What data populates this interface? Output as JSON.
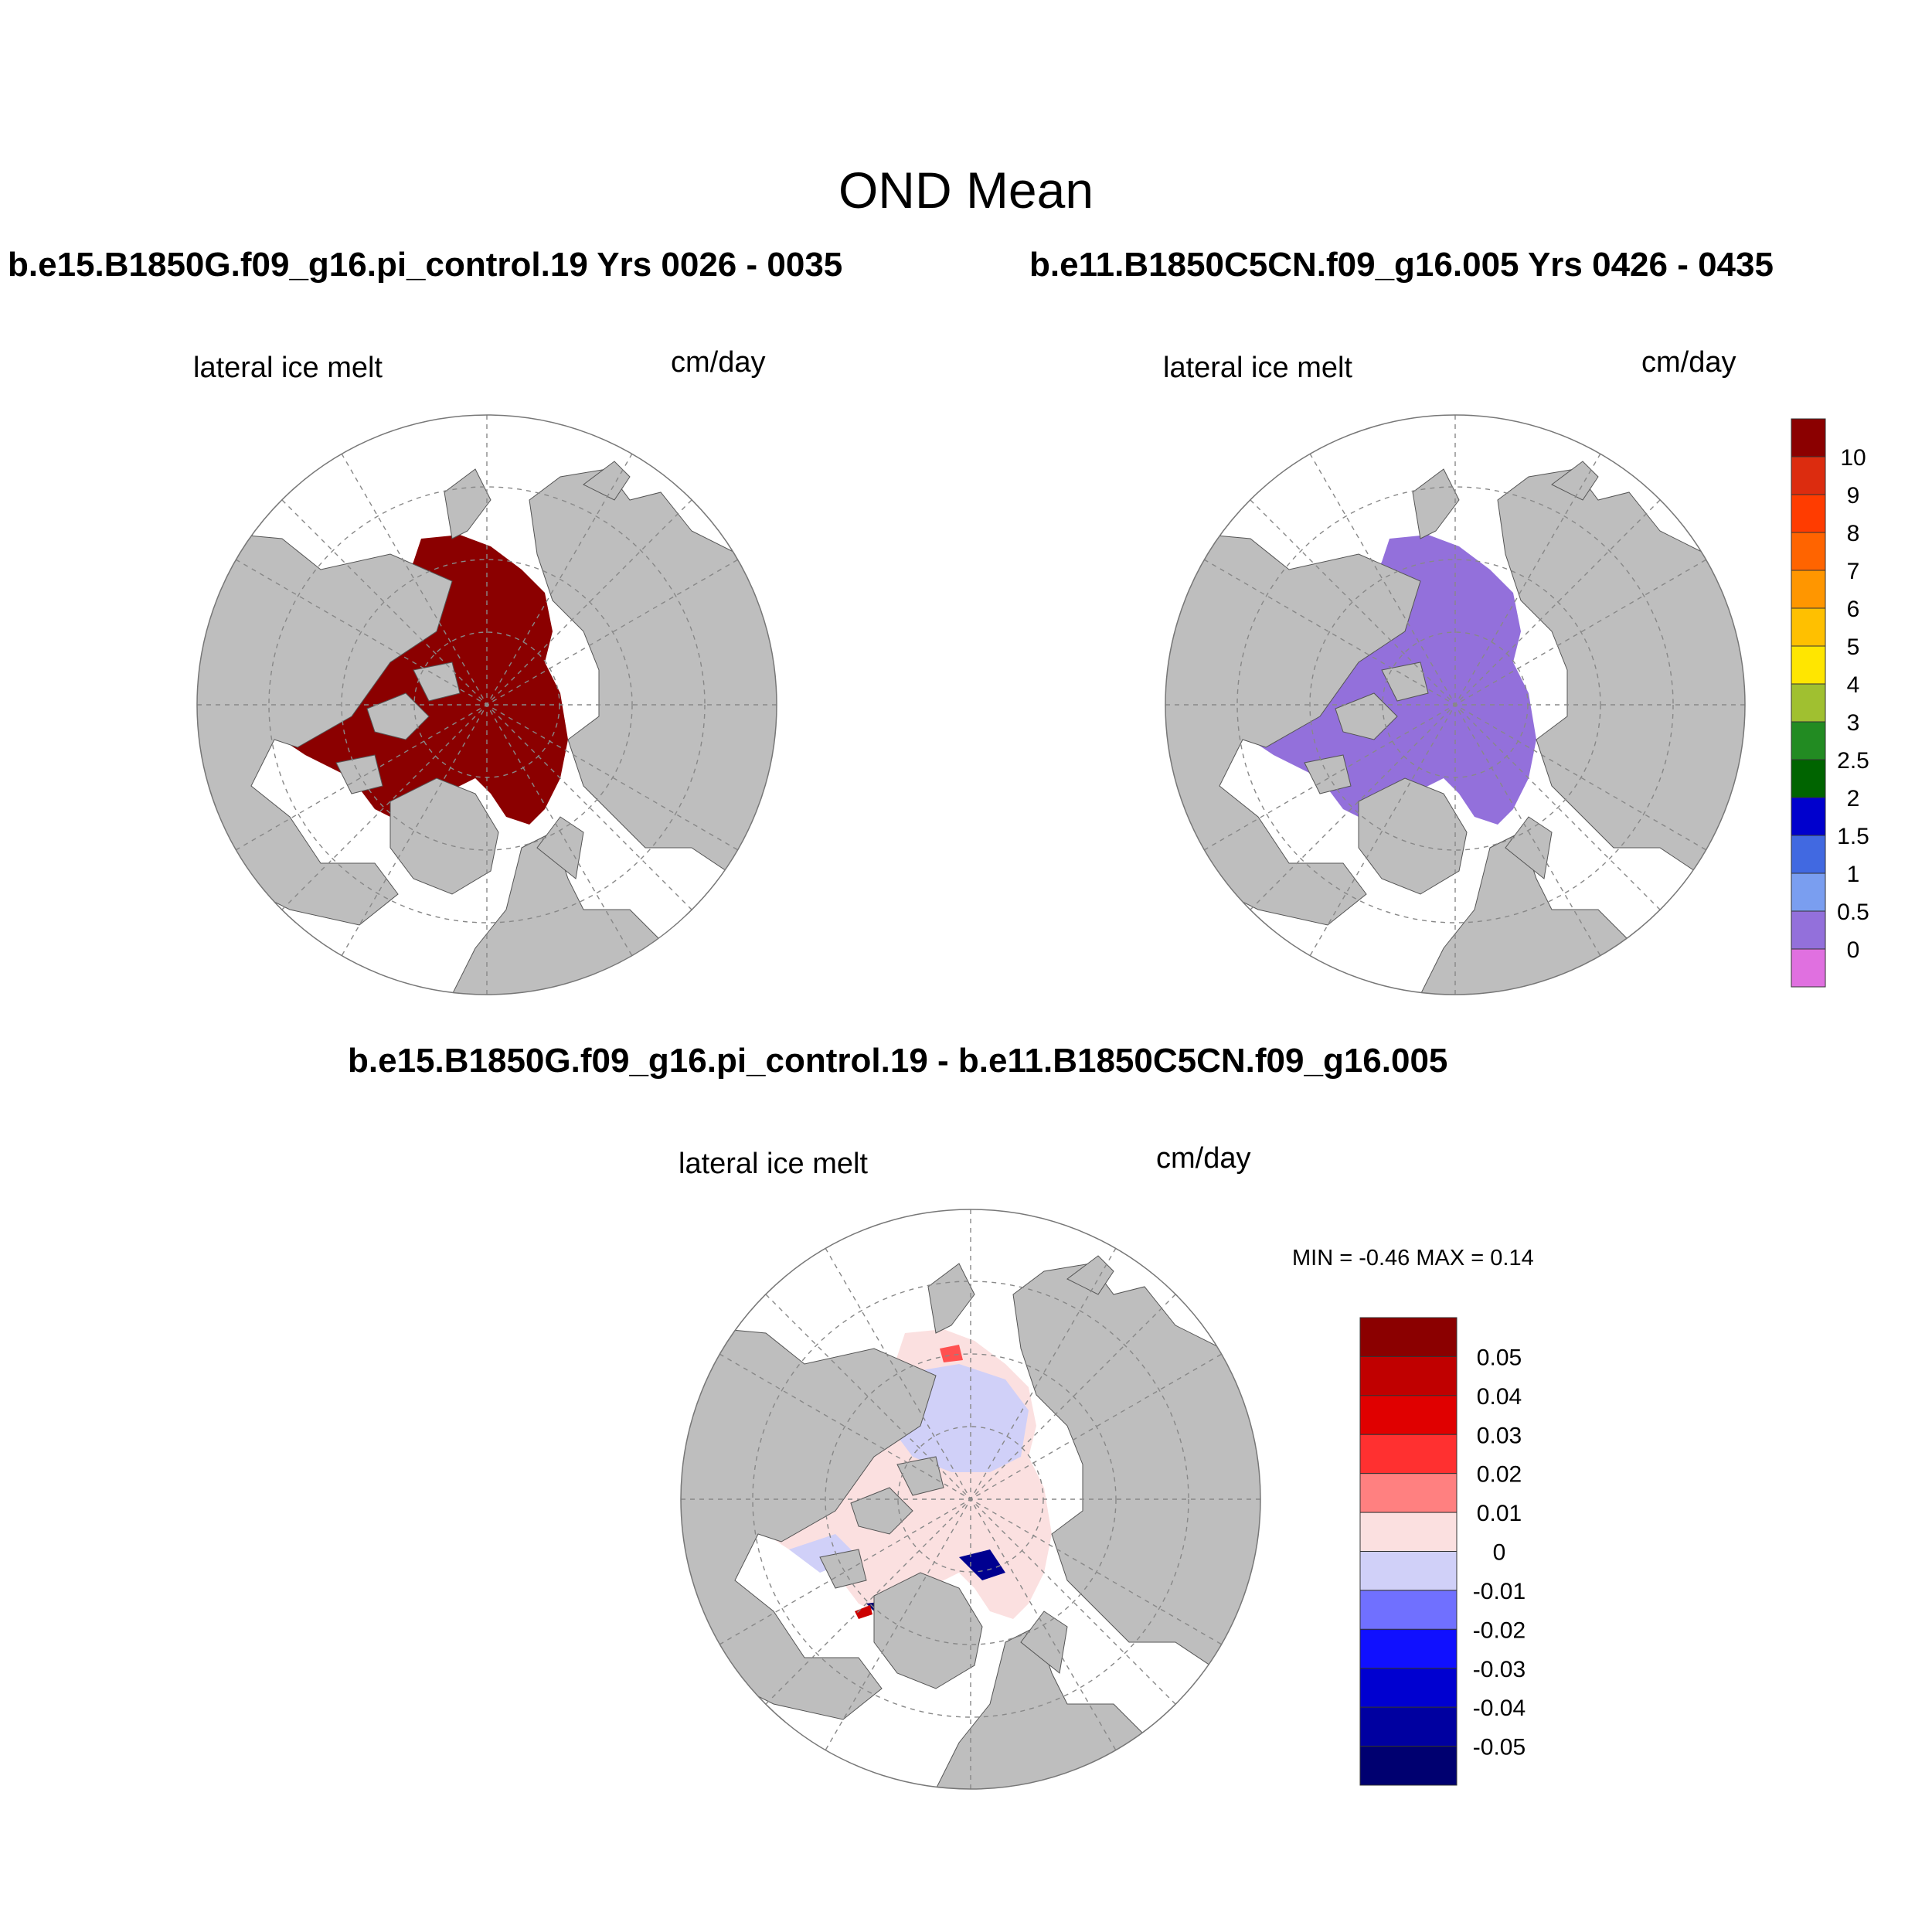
{
  "figure_title": "OND Mean",
  "panels": [
    {
      "title": "b.e15.B1850G.f09_g16.pi_control.19  Yrs 0026 - 0035",
      "variable": "lateral ice melt",
      "units": "cm/day",
      "ice_color": "#8b0000"
    },
    {
      "title": "b.e11.B1850C5CN.f09_g16.005  Yrs 0426 - 0435",
      "variable": "lateral ice melt",
      "units": "cm/day",
      "ice_color": "#9370db"
    },
    {
      "title": "b.e15.B1850G.f09_g16.pi_control.19 - b.e11.B1850C5CN.f09_g16.005",
      "variable": "lateral ice melt",
      "units": "cm/day",
      "min_max": "MIN =  -0.46 MAX =   0.14"
    }
  ],
  "colorbar_top": {
    "levels": [
      "10",
      "9",
      "8",
      "7",
      "6",
      "5",
      "4",
      "3",
      "2.5",
      "2",
      "1.5",
      "1",
      "0.5",
      "0"
    ],
    "colors": [
      "#8b0000",
      "#dc2c0f",
      "#ff3c00",
      "#ff6400",
      "#ff9600",
      "#ffc000",
      "#ffe600",
      "#a0c030",
      "#228b22",
      "#006400",
      "#0000cd",
      "#4169e1",
      "#7a9ef0",
      "#9370db",
      "#e070e0"
    ]
  },
  "colorbar_diff": {
    "levels": [
      "0.05",
      "0.04",
      "0.03",
      "0.02",
      "0.01",
      "0",
      "-0.01",
      "-0.02",
      "-0.03",
      "-0.04",
      "-0.05"
    ],
    "colors": [
      "#8b0000",
      "#c00000",
      "#e00000",
      "#ff3030",
      "#ff8080",
      "#fbe0e0",
      "#d0d0f8",
      "#7070ff",
      "#1010ff",
      "#0000d0",
      "#0000a0",
      "#000070"
    ]
  },
  "map_colors": {
    "land": "#bebebe",
    "ocean": "#ffffff",
    "diff_positive_fill": "#fbe0e0",
    "diff_negative_fill": "#d0d0f8",
    "diff_strong_negative": "#000090",
    "diff_strong_positive": "#cc0000"
  }
}
